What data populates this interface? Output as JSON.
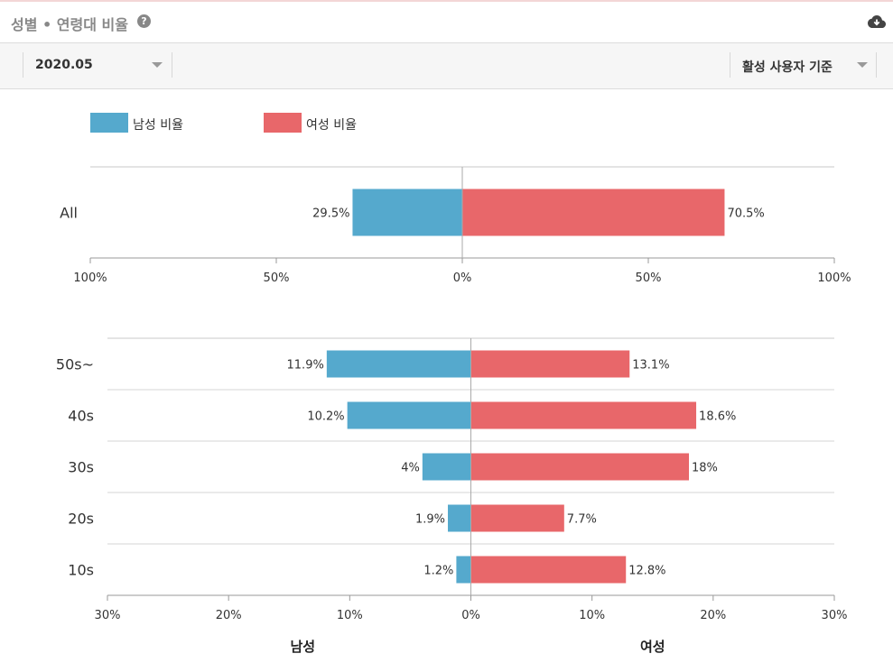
{
  "header": {
    "title": "성별 • 연령대 비율",
    "help_icon": "question-circle-icon",
    "download_icon": "cloud-download-icon"
  },
  "toolbar": {
    "period_value": "2020.05",
    "basis_value": "활성 사용자 기준"
  },
  "legend": {
    "male_label": "남성 비율",
    "female_label": "여성 비율"
  },
  "colors": {
    "male": "#55a9cd",
    "female": "#e8676a"
  },
  "chart_data": [
    {
      "type": "bar",
      "orientation": "horizontal-diverging",
      "categories": [
        "All"
      ],
      "series": [
        {
          "name": "남성 비율",
          "values": [
            29.5
          ],
          "labels": [
            "29.5%"
          ]
        },
        {
          "name": "여성 비율",
          "values": [
            70.5
          ],
          "labels": [
            "70.5%"
          ]
        }
      ],
      "xlim": [
        -100,
        100
      ],
      "xticks": [
        "100%",
        "50%",
        "0%",
        "50%",
        "100%"
      ]
    },
    {
      "type": "bar",
      "orientation": "horizontal-diverging",
      "categories": [
        "50s~",
        "40s",
        "30s",
        "20s",
        "10s"
      ],
      "series": [
        {
          "name": "남성 비율",
          "values": [
            11.9,
            10.2,
            4,
            1.9,
            1.2
          ],
          "labels": [
            "11.9%",
            "10.2%",
            "4%",
            "1.9%",
            "1.2%"
          ]
        },
        {
          "name": "여성 비율",
          "values": [
            13.1,
            18.6,
            18,
            7.7,
            12.8
          ],
          "labels": [
            "13.1%",
            "18.6%",
            "18%",
            "7.7%",
            "12.8%"
          ]
        }
      ],
      "xlim": [
        -30,
        30
      ],
      "xticks": [
        "30%",
        "20%",
        "10%",
        "0%",
        "10%",
        "20%",
        "30%"
      ],
      "xlabel_left": "남성",
      "xlabel_right": "여성"
    }
  ]
}
